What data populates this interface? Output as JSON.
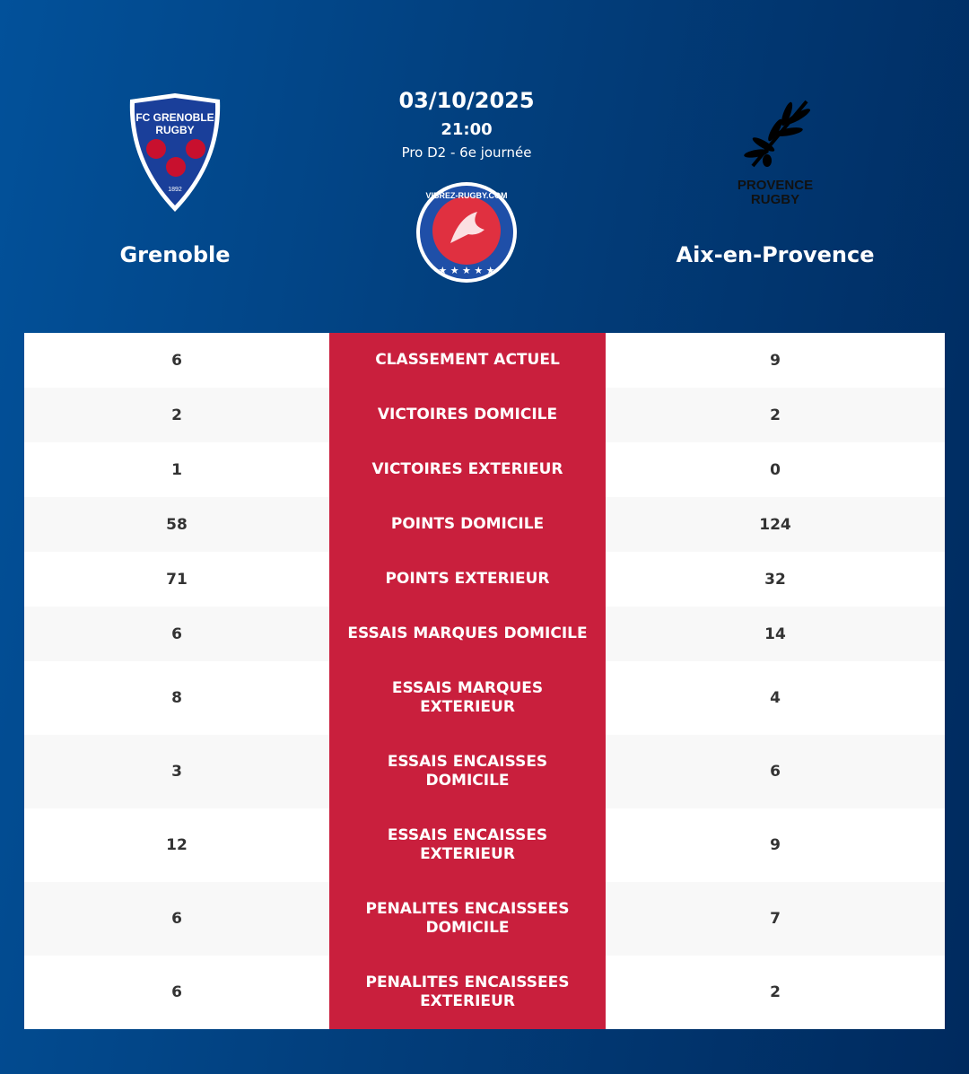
{
  "match": {
    "date": "03/10/2025",
    "time": "21:00",
    "competition": "Pro D2 - 6e journée"
  },
  "home": {
    "name": "Grenoble",
    "logo_text": "FC GRENOBLE RUGBY 1892"
  },
  "away": {
    "name": "Aix-en-Provence",
    "logo_text": "PROVENCE RUGBY"
  },
  "site_logo_text": "VIBREZ-RUGBY.COM",
  "colors": {
    "accent": "#c91f3d",
    "background": "#023f7d"
  },
  "stats": [
    {
      "label": "CLASSEMENT ACTUEL",
      "home": "6",
      "away": "9"
    },
    {
      "label": "VICTOIRES DOMICILE",
      "home": "2",
      "away": "2"
    },
    {
      "label": "VICTOIRES EXTERIEUR",
      "home": "1",
      "away": "0"
    },
    {
      "label": "POINTS DOMICILE",
      "home": "58",
      "away": "124"
    },
    {
      "label": "POINTS EXTERIEUR",
      "home": "71",
      "away": "32"
    },
    {
      "label": "ESSAIS MARQUES DOMICILE",
      "home": "6",
      "away": "14"
    },
    {
      "label": "ESSAIS MARQUES EXTERIEUR",
      "home": "8",
      "away": "4"
    },
    {
      "label": "ESSAIS ENCAISSES DOMICILE",
      "home": "3",
      "away": "6"
    },
    {
      "label": "ESSAIS ENCAISSES EXTERIEUR",
      "home": "12",
      "away": "9"
    },
    {
      "label": "PENALITES ENCAISSEES DOMICILE",
      "home": "6",
      "away": "7"
    },
    {
      "label": "PENALITES ENCAISSEES EXTERIEUR",
      "home": "6",
      "away": "2"
    }
  ]
}
